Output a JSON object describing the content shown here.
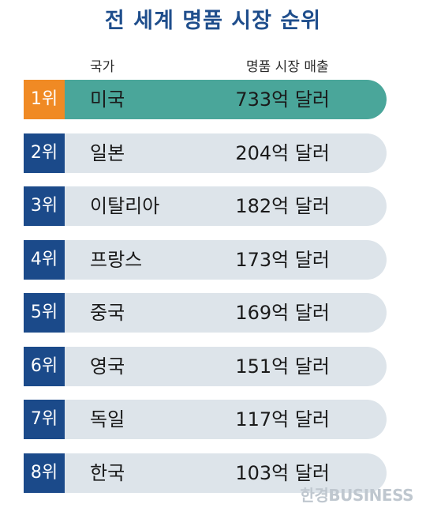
{
  "title": "전 세계 명품 시장 순위",
  "headers": {
    "country": "국가",
    "sales": "명품 시장 매출"
  },
  "colors": {
    "top_bar": "#4aa69a",
    "top_rank": "#f08a24",
    "bar": "#dde4ea",
    "rank": "#1b4a8a"
  },
  "chart_data": {
    "type": "bar",
    "title": "전 세계 명품 시장 순위",
    "ranks": [
      "1위",
      "2위",
      "3위",
      "4위",
      "5위",
      "6위",
      "7위",
      "8위"
    ],
    "categories": [
      "미국",
      "일본",
      "이탈리아",
      "프랑스",
      "중국",
      "영국",
      "독일",
      "한국"
    ],
    "values": [
      733,
      204,
      182,
      173,
      169,
      151,
      117,
      103
    ],
    "value_labels": [
      "733억 달러",
      "204억 달러",
      "182억 달러",
      "173억 달러",
      "169억 달러",
      "151억 달러",
      "117억 달러",
      "103억 달러"
    ]
  },
  "watermark": "한경BUSINESS"
}
